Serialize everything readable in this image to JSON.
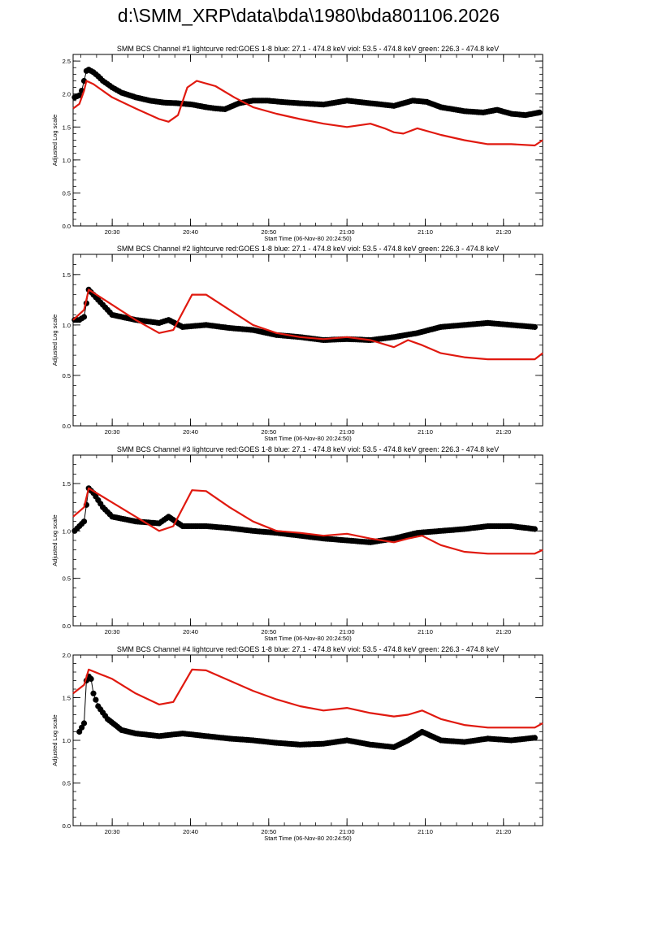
{
  "page_title": "d:\\SMM_XRP\\data\\bda\\1980\\bda801106.2026",
  "colors": {
    "black_series": "#000000",
    "red_series": "#e0190f",
    "axes": "#000000"
  },
  "chart_data": [
    {
      "type": "scatter",
      "title": "SMM BCS Channel #1 lightcurve  red:GOES 1-8  blue: 27.1 - 474.8 keV  viol: 53.5 - 474.8 keV  green: 226.3 - 474.8 keV",
      "xlabel": "Start Time (06-Nov-80 20:24:50)",
      "ylabel": "Adjusted Log scale",
      "xlim": [
        20.4167,
        21.4167
      ],
      "ylim": [
        0,
        2.6
      ],
      "xticks": [
        {
          "v": 20.5,
          "label": "20:30"
        },
        {
          "v": 20.6667,
          "label": "20:40"
        },
        {
          "v": 20.8333,
          "label": "20:50"
        },
        {
          "v": 21.0,
          "label": "21:00"
        },
        {
          "v": 21.1667,
          "label": "21:10"
        },
        {
          "v": 21.3333,
          "label": "21:20"
        }
      ],
      "yticks": [
        {
          "v": 0,
          "label": "0.0"
        },
        {
          "v": 0.5,
          "label": "0.5"
        },
        {
          "v": 1.0,
          "label": "1.0"
        },
        {
          "v": 1.5,
          "label": "1.5"
        },
        {
          "v": 2.0,
          "label": "2.0"
        },
        {
          "v": 2.5,
          "label": "2.5"
        }
      ],
      "series": [
        {
          "color": "black",
          "style": "dots",
          "x": [
            20.42,
            20.43,
            20.435,
            20.44,
            20.445,
            20.45,
            20.46,
            20.47,
            20.48,
            20.5,
            20.52,
            20.55,
            20.58,
            20.61,
            20.64,
            20.67,
            20.7,
            20.72,
            20.74,
            20.77,
            20.8,
            20.83,
            20.86,
            20.9,
            20.95,
            21.0,
            21.05,
            21.1,
            21.14,
            21.17,
            21.2,
            21.25,
            21.29,
            21.32,
            21.35,
            21.38,
            21.41
          ],
          "y": [
            1.95,
            1.98,
            2.05,
            2.2,
            2.35,
            2.37,
            2.33,
            2.27,
            2.2,
            2.1,
            2.02,
            1.95,
            1.9,
            1.87,
            1.86,
            1.84,
            1.8,
            1.78,
            1.77,
            1.86,
            1.9,
            1.9,
            1.88,
            1.86,
            1.84,
            1.9,
            1.86,
            1.82,
            1.9,
            1.88,
            1.8,
            1.74,
            1.72,
            1.76,
            1.7,
            1.68,
            1.72
          ]
        },
        {
          "color": "red",
          "style": "line",
          "x": [
            20.4167,
            20.43,
            20.44,
            20.445,
            20.46,
            20.5,
            20.55,
            20.6,
            20.62,
            20.64,
            20.66,
            20.68,
            20.72,
            20.76,
            20.8,
            20.85,
            20.9,
            20.95,
            21.0,
            21.05,
            21.08,
            21.1,
            21.12,
            21.15,
            21.2,
            21.25,
            21.3,
            21.35,
            21.4,
            21.4167
          ],
          "y": [
            1.78,
            1.85,
            2.05,
            2.2,
            2.15,
            1.95,
            1.78,
            1.62,
            1.58,
            1.68,
            2.1,
            2.2,
            2.12,
            1.95,
            1.8,
            1.7,
            1.62,
            1.55,
            1.5,
            1.55,
            1.48,
            1.42,
            1.4,
            1.48,
            1.38,
            1.3,
            1.24,
            1.24,
            1.22,
            1.3
          ]
        }
      ]
    },
    {
      "type": "scatter",
      "title": "SMM BCS Channel #2 lightcurve  red:GOES 1-8  blue: 27.1 - 474.8 keV  viol: 53.5 - 474.8 keV  green: 226.3 - 474.8 keV",
      "xlabel": "Start Time (06-Nov-80 20:24:50)",
      "ylabel": "Adjusted Log scale",
      "xlim": [
        20.4167,
        21.4167
      ],
      "ylim": [
        0,
        1.7
      ],
      "xticks": [
        {
          "v": 20.5,
          "label": "20:30"
        },
        {
          "v": 20.6667,
          "label": "20:40"
        },
        {
          "v": 20.8333,
          "label": "20:50"
        },
        {
          "v": 21.0,
          "label": "21:00"
        },
        {
          "v": 21.1667,
          "label": "21:10"
        },
        {
          "v": 21.3333,
          "label": "21:20"
        }
      ],
      "yticks": [
        {
          "v": 0,
          "label": "0.0"
        },
        {
          "v": 0.5,
          "label": "0.5"
        },
        {
          "v": 1.0,
          "label": "1.0"
        },
        {
          "v": 1.5,
          "label": "1.5"
        }
      ],
      "series": [
        {
          "color": "black",
          "style": "dots",
          "x": [
            20.42,
            20.43,
            20.44,
            20.45,
            20.46,
            20.48,
            20.5,
            20.55,
            20.6,
            20.62,
            20.65,
            20.7,
            20.75,
            20.8,
            20.85,
            20.9,
            20.95,
            21.0,
            21.05,
            21.1,
            21.15,
            21.2,
            21.25,
            21.3,
            21.35,
            21.4
          ],
          "y": [
            1.05,
            1.05,
            1.08,
            1.35,
            1.3,
            1.2,
            1.1,
            1.05,
            1.02,
            1.05,
            0.98,
            1.0,
            0.97,
            0.95,
            0.9,
            0.88,
            0.85,
            0.86,
            0.85,
            0.88,
            0.92,
            0.98,
            1.0,
            1.02,
            1.0,
            0.98
          ]
        },
        {
          "color": "red",
          "style": "line",
          "x": [
            20.4167,
            20.44,
            20.45,
            20.5,
            20.55,
            20.6,
            20.63,
            20.67,
            20.7,
            20.75,
            20.8,
            20.85,
            20.9,
            20.95,
            21.0,
            21.05,
            21.1,
            21.13,
            21.16,
            21.2,
            21.25,
            21.3,
            21.35,
            21.4,
            21.4167
          ],
          "y": [
            1.05,
            1.15,
            1.35,
            1.2,
            1.05,
            0.92,
            0.95,
            1.3,
            1.3,
            1.15,
            1.0,
            0.92,
            0.88,
            0.86,
            0.88,
            0.85,
            0.78,
            0.85,
            0.8,
            0.72,
            0.68,
            0.66,
            0.66,
            0.66,
            0.72
          ]
        }
      ]
    },
    {
      "type": "scatter",
      "title": "SMM BCS Channel #3 lightcurve  red:GOES 1-8  blue: 27.1 - 474.8 keV  viol: 53.5 - 474.8 keV  green: 226.3 - 474.8 keV",
      "xlabel": "Start Time (06-Nov-80 20:24:50)",
      "ylabel": "Adjusted Log scale",
      "xlim": [
        20.4167,
        21.4167
      ],
      "ylim": [
        0,
        1.8
      ],
      "xticks": [
        {
          "v": 20.5,
          "label": "20:30"
        },
        {
          "v": 20.6667,
          "label": "20:40"
        },
        {
          "v": 20.8333,
          "label": "20:50"
        },
        {
          "v": 21.0,
          "label": "21:00"
        },
        {
          "v": 21.1667,
          "label": "21:10"
        },
        {
          "v": 21.3333,
          "label": "21:20"
        }
      ],
      "yticks": [
        {
          "v": 0,
          "label": "0.0"
        },
        {
          "v": 0.5,
          "label": "0.5"
        },
        {
          "v": 1.0,
          "label": "1.0"
        },
        {
          "v": 1.5,
          "label": "1.5"
        }
      ],
      "series": [
        {
          "color": "black",
          "style": "dots",
          "x": [
            20.42,
            20.43,
            20.44,
            20.45,
            20.46,
            20.48,
            20.5,
            20.55,
            20.6,
            20.62,
            20.65,
            20.7,
            20.75,
            20.8,
            20.85,
            20.9,
            20.95,
            21.0,
            21.05,
            21.1,
            21.15,
            21.2,
            21.25,
            21.3,
            21.35,
            21.4
          ],
          "y": [
            1.0,
            1.05,
            1.1,
            1.45,
            1.4,
            1.25,
            1.15,
            1.1,
            1.08,
            1.15,
            1.05,
            1.05,
            1.03,
            1.0,
            0.98,
            0.95,
            0.92,
            0.9,
            0.88,
            0.92,
            0.98,
            1.0,
            1.02,
            1.05,
            1.05,
            1.02
          ]
        },
        {
          "color": "red",
          "style": "line",
          "x": [
            20.4167,
            20.44,
            20.45,
            20.5,
            20.55,
            20.6,
            20.63,
            20.67,
            20.7,
            20.75,
            20.8,
            20.85,
            20.9,
            20.95,
            21.0,
            21.05,
            21.1,
            21.13,
            21.16,
            21.2,
            21.25,
            21.3,
            21.35,
            21.4,
            21.4167
          ],
          "y": [
            1.15,
            1.25,
            1.45,
            1.3,
            1.15,
            1.0,
            1.05,
            1.43,
            1.42,
            1.25,
            1.1,
            1.0,
            0.98,
            0.95,
            0.97,
            0.92,
            0.88,
            0.92,
            0.95,
            0.85,
            0.78,
            0.76,
            0.76,
            0.76,
            0.8
          ]
        }
      ]
    },
    {
      "type": "scatter",
      "title": "SMM BCS Channel #4 lightcurve  red:GOES 1-8  blue: 27.1 - 474.8 keV  viol: 53.5 - 474.8 keV  green: 226.3 - 474.8 keV",
      "xlabel": "Start Time (06-Nov-80 20:24:50)",
      "ylabel": "Adjusted Log scale",
      "xlim": [
        20.4167,
        21.4167
      ],
      "ylim": [
        0,
        2.0
      ],
      "xticks": [
        {
          "v": 20.5,
          "label": "20:30"
        },
        {
          "v": 20.6667,
          "label": "20:40"
        },
        {
          "v": 20.8333,
          "label": "20:50"
        },
        {
          "v": 21.0,
          "label": "21:00"
        },
        {
          "v": 21.1667,
          "label": "21:10"
        },
        {
          "v": 21.3333,
          "label": "21:20"
        }
      ],
      "yticks": [
        {
          "v": 0,
          "label": "0.0"
        },
        {
          "v": 0.5,
          "label": "0.5"
        },
        {
          "v": 1.0,
          "label": "1.0"
        },
        {
          "v": 1.5,
          "label": "1.5"
        },
        {
          "v": 2.0,
          "label": "2.0"
        }
      ],
      "series": [
        {
          "color": "black",
          "style": "dots",
          "x": [
            20.43,
            20.44,
            20.445,
            20.45,
            20.455,
            20.46,
            20.47,
            20.49,
            20.52,
            20.55,
            20.6,
            20.65,
            20.7,
            20.75,
            20.8,
            20.85,
            20.9,
            20.95,
            21.0,
            21.05,
            21.1,
            21.13,
            21.16,
            21.2,
            21.25,
            21.3,
            21.35,
            21.4
          ],
          "y": [
            1.1,
            1.2,
            1.7,
            1.75,
            1.72,
            1.55,
            1.4,
            1.25,
            1.12,
            1.08,
            1.05,
            1.08,
            1.05,
            1.02,
            1.0,
            0.97,
            0.95,
            0.96,
            1.0,
            0.95,
            0.92,
            1.0,
            1.1,
            1.0,
            0.98,
            1.02,
            1.0,
            1.03
          ]
        },
        {
          "color": "red",
          "style": "line",
          "x": [
            20.4167,
            20.44,
            20.45,
            20.5,
            20.55,
            20.6,
            20.63,
            20.67,
            20.7,
            20.75,
            20.8,
            20.85,
            20.9,
            20.95,
            21.0,
            21.05,
            21.1,
            21.13,
            21.16,
            21.2,
            21.25,
            21.3,
            21.35,
            21.4,
            21.4167
          ],
          "y": [
            1.55,
            1.65,
            1.83,
            1.72,
            1.55,
            1.42,
            1.45,
            1.83,
            1.82,
            1.7,
            1.58,
            1.48,
            1.4,
            1.35,
            1.38,
            1.32,
            1.28,
            1.3,
            1.35,
            1.25,
            1.18,
            1.15,
            1.15,
            1.15,
            1.2
          ]
        }
      ]
    }
  ]
}
